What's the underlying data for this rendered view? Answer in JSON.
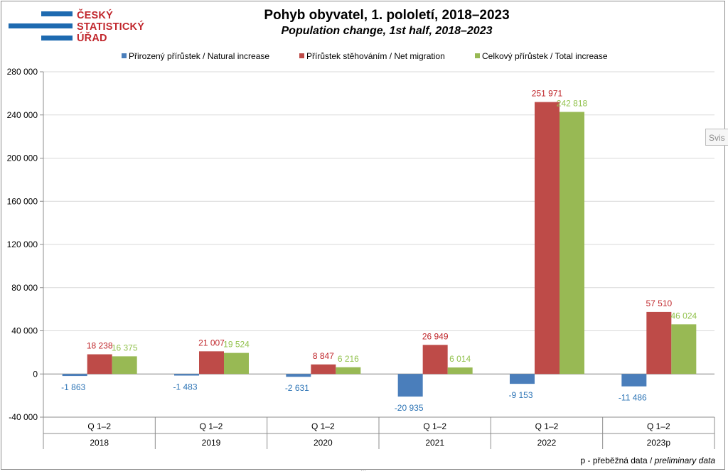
{
  "logo": {
    "line1": "ČESKÝ",
    "line2": "STATISTICKÝ",
    "line3": "ÚŘAD"
  },
  "footnote": {
    "prefix": "p - přeběžná data /",
    "italic": "preliminary data"
  },
  "side_tab": {
    "label": "Svis"
  },
  "colors": {
    "natural": "#4a7ebb",
    "migration": "#be4b48",
    "total": "#98b954",
    "logo_blue": "#1e6ab0",
    "logo_red": "#c1272d"
  },
  "chart_data": {
    "type": "bar",
    "title": "Pohyb obyvatel, 1. pololetí, 2018–2023",
    "subtitle": "Population change, 1st half, 2018–2023",
    "categories": [
      "Q 1–2",
      "Q 1–2",
      "Q 1–2",
      "Q 1–2",
      "Q 1–2",
      "Q 1–2"
    ],
    "years": [
      "2018",
      "2019",
      "2020",
      "2021",
      "2022",
      "2023p"
    ],
    "series": [
      {
        "name": "Přirozený přírůstek / Natural increase",
        "color": "#4a7ebb",
        "label_color": "#2e75b6",
        "values": [
          -1863,
          -1483,
          -2631,
          -20935,
          -9153,
          -11486
        ],
        "labels": [
          "-1 863",
          "-1 483",
          "-2 631",
          "-20 935",
          "-9 153",
          "-11 486"
        ]
      },
      {
        "name": "Přírůstek stěhováním / Net migration",
        "color": "#be4b48",
        "label_color": "#c0282d",
        "values": [
          18238,
          21007,
          8847,
          26949,
          251971,
          57510
        ],
        "labels": [
          "18 238",
          "21 007",
          "8 847",
          "26 949",
          "251 971",
          "57 510"
        ]
      },
      {
        "name": "Celkový přírůstek / Total increase",
        "color": "#98b954",
        "label_color": "#92c24d",
        "values": [
          16375,
          19524,
          6216,
          6014,
          242818,
          46024
        ],
        "labels": [
          "16 375",
          "19 524",
          "6 216",
          "6 014",
          "242 818",
          "46 024"
        ]
      }
    ],
    "ylim": [
      -40000,
      280000
    ],
    "yticks": [
      -40000,
      0,
      40000,
      80000,
      120000,
      160000,
      200000,
      240000,
      280000
    ],
    "ytick_labels": [
      "-40 000",
      "0",
      "40 000",
      "80 000",
      "120 000",
      "160 000",
      "200 000",
      "240 000",
      "280 000"
    ],
    "grid": true,
    "legend_position": "top"
  }
}
